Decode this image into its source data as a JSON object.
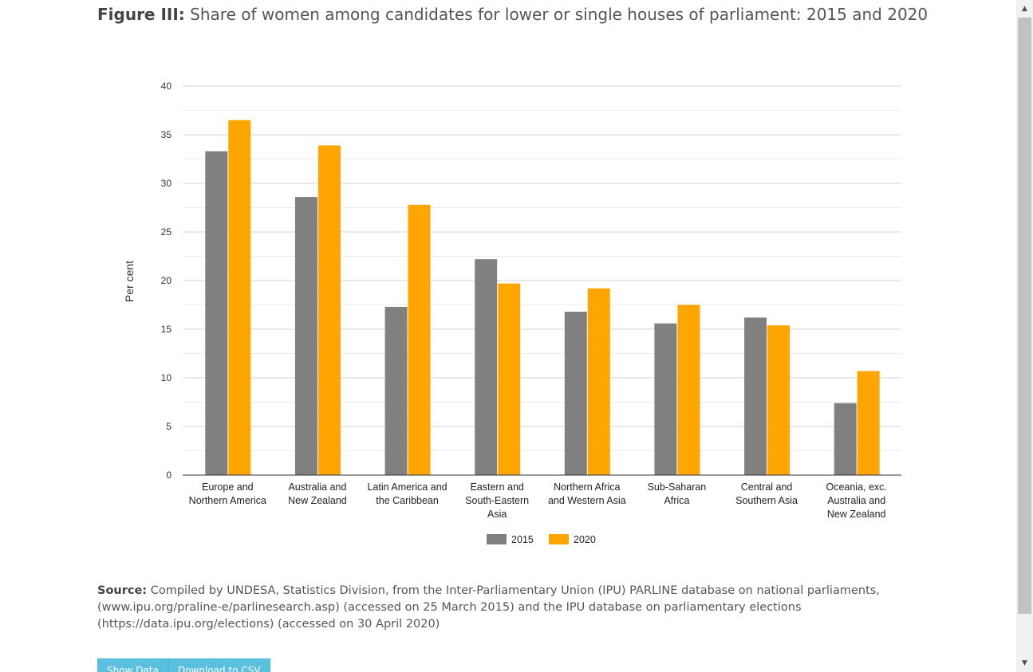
{
  "figure": {
    "label": "Figure III:",
    "title": "Share of women among candidates for lower or single houses of parliament: 2015 and 2020"
  },
  "chart_data": {
    "type": "bar",
    "categories": [
      [
        "Europe and",
        "Northern America"
      ],
      [
        "Australia and",
        "New Zealand"
      ],
      [
        "Latin America and",
        "the Caribbean"
      ],
      [
        "Eastern and",
        "South-Eastern",
        "Asia"
      ],
      [
        "Northern Africa",
        "and Western Asia"
      ],
      [
        "Sub-Saharan",
        "Africa"
      ],
      [
        "Central and",
        "Southern Asia"
      ],
      [
        "Oceania, exc.",
        "Australia and",
        "New Zealand"
      ]
    ],
    "series": [
      {
        "name": "2015",
        "color": "#808080",
        "values": [
          33.3,
          28.6,
          17.3,
          22.2,
          16.8,
          15.6,
          16.2,
          7.4
        ]
      },
      {
        "name": "2020",
        "color": "#ffa500",
        "values": [
          36.5,
          33.9,
          27.8,
          19.7,
          19.2,
          17.5,
          15.4,
          10.7
        ]
      }
    ],
    "ylabel": "Per cent",
    "ylim": [
      0,
      40
    ],
    "yticks": [
      0,
      5,
      10,
      15,
      20,
      25,
      30,
      35,
      40
    ],
    "grid": true,
    "legend_position": "bottom-center"
  },
  "source": {
    "label": "Source:",
    "text": "Compiled by UNDESA, Statistics Division, from the Inter-Parliamentary Union (IPU) PARLINE database on national parliaments, (www.ipu.org/praline-e/parlinesearch.asp) (accessed on 25 March 2015) and the IPU database on parliamentary elections (https://data.ipu.org/elections) (accessed on 30 April 2020)"
  },
  "buttons": {
    "show_data": "Show Data",
    "download_csv": "Download to CSV"
  },
  "scrollbar": {
    "up_icon": "triangle-up-icon",
    "down_icon": "triangle-down-icon"
  }
}
